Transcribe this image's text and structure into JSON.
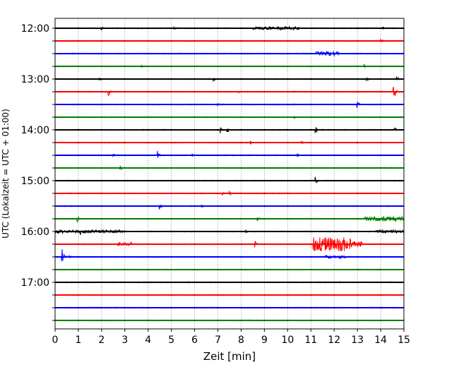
{
  "chart_data": {
    "type": "line",
    "subtype": "helicorder",
    "xlabel": "Zeit  [min]",
    "ylabel": "UTC (Lokalzeit = UTC + 01:00)",
    "xlim": [
      0,
      15
    ],
    "x_ticks": [
      "0",
      "1",
      "2",
      "3",
      "4",
      "5",
      "6",
      "7",
      "8",
      "9",
      "10",
      "11",
      "12",
      "13",
      "14",
      "15"
    ],
    "y_tick_labels": [
      "12:00",
      "13:00",
      "14:00",
      "15:00",
      "16:00",
      "17:00"
    ],
    "grid": "vertical dotted",
    "colors": [
      "#000000",
      "#ff0000",
      "#0000ff",
      "#008000"
    ],
    "rows": [
      {
        "time": "12:00",
        "color": "#000000",
        "events": [
          {
            "t": 2.0,
            "a": 0.3
          },
          {
            "t": 5.1,
            "a": 0.45
          },
          {
            "t": 14.1,
            "a": 0.25
          }
        ],
        "bursts": [
          {
            "t0": 8.5,
            "t1": 10.5,
            "a": 0.25
          }
        ]
      },
      {
        "time": "12:15",
        "color": "#ff0000",
        "events": [
          {
            "t": 14.0,
            "a": 0.5
          }
        ],
        "bursts": []
      },
      {
        "time": "12:30",
        "color": "#0000ff",
        "events": [
          {
            "t": 0.7,
            "a": 0.3
          }
        ],
        "bursts": [
          {
            "t0": 11.2,
            "t1": 12.2,
            "a": 0.35
          }
        ]
      },
      {
        "time": "12:45",
        "color": "#008000",
        "events": [
          {
            "t": 3.7,
            "a": 0.3
          },
          {
            "t": 13.3,
            "a": 0.3
          }
        ],
        "bursts": []
      },
      {
        "time": "13:00",
        "color": "#000000",
        "events": [
          {
            "t": 1.9,
            "a": 0.4
          },
          {
            "t": 6.8,
            "a": 0.45
          },
          {
            "t": 13.4,
            "a": 0.45
          },
          {
            "t": 14.7,
            "a": 0.6
          }
        ],
        "bursts": []
      },
      {
        "time": "13:15",
        "color": "#ff0000",
        "events": [
          {
            "t": 2.3,
            "a": 0.8
          },
          {
            "t": 7.9,
            "a": 0.3
          },
          {
            "t": 14.55,
            "a": 1.7
          }
        ],
        "bursts": []
      },
      {
        "time": "13:30",
        "color": "#0000ff",
        "events": [
          {
            "t": 7.0,
            "a": 0.25
          },
          {
            "t": 13.0,
            "a": 0.6
          }
        ],
        "bursts": []
      },
      {
        "time": "13:45",
        "color": "#008000",
        "events": [
          {
            "t": 10.3,
            "a": 0.3
          }
        ],
        "bursts": []
      },
      {
        "time": "14:00",
        "color": "#000000",
        "events": [
          {
            "t": 7.1,
            "a": 0.6
          },
          {
            "t": 7.4,
            "a": 0.45
          },
          {
            "t": 11.2,
            "a": 0.6
          },
          {
            "t": 14.6,
            "a": 0.55
          }
        ],
        "bursts": []
      },
      {
        "time": "14:15",
        "color": "#ff0000",
        "events": [
          {
            "t": 8.4,
            "a": 0.35
          },
          {
            "t": 10.6,
            "a": 0.3
          }
        ],
        "bursts": []
      },
      {
        "time": "14:30",
        "color": "#0000ff",
        "events": [
          {
            "t": 2.5,
            "a": 0.3
          },
          {
            "t": 4.4,
            "a": 0.95
          },
          {
            "t": 5.9,
            "a": 0.3
          },
          {
            "t": 10.4,
            "a": 0.5
          }
        ],
        "bursts": []
      },
      {
        "time": "14:45",
        "color": "#008000",
        "events": [
          {
            "t": 2.8,
            "a": 0.5
          }
        ],
        "bursts": []
      },
      {
        "time": "15:00",
        "color": "#000000",
        "events": [
          {
            "t": 11.2,
            "a": 0.7
          }
        ],
        "bursts": []
      },
      {
        "time": "15:15",
        "color": "#ff0000",
        "events": [
          {
            "t": 7.2,
            "a": 0.4
          },
          {
            "t": 7.5,
            "a": 0.35
          }
        ],
        "bursts": []
      },
      {
        "time": "15:30",
        "color": "#0000ff",
        "events": [
          {
            "t": 4.5,
            "a": 0.6
          },
          {
            "t": 6.3,
            "a": 0.25
          }
        ],
        "bursts": []
      },
      {
        "time": "15:45",
        "color": "#008000",
        "events": [
          {
            "t": 0.95,
            "a": 0.75
          },
          {
            "t": 8.7,
            "a": 0.45
          }
        ],
        "bursts": [
          {
            "t0": 13.3,
            "t1": 15.0,
            "a": 0.35
          }
        ]
      },
      {
        "time": "16:00",
        "color": "#000000",
        "events": [
          {
            "t": 0.3,
            "a": 0.4
          },
          {
            "t": 1.1,
            "a": 0.6
          },
          {
            "t": 2.4,
            "a": 0.35
          },
          {
            "t": 8.2,
            "a": 0.4
          }
        ],
        "bursts": [
          {
            "t0": 0.0,
            "t1": 3.0,
            "a": 0.25
          },
          {
            "t0": 13.8,
            "t1": 15.0,
            "a": 0.25
          }
        ]
      },
      {
        "time": "16:15",
        "color": "#ff0000",
        "events": [
          {
            "t": 8.6,
            "a": 0.55
          }
        ],
        "bursts": [
          {
            "t0": 2.7,
            "t1": 3.3,
            "a": 0.3
          },
          {
            "t0": 11.1,
            "t1": 12.7,
            "a": 1.1
          },
          {
            "t0": 12.7,
            "t1": 13.2,
            "a": 0.45
          }
        ]
      },
      {
        "time": "16:30",
        "color": "#0000ff",
        "events": [
          {
            "t": 0.3,
            "a": 1.5
          },
          {
            "t": 0.6,
            "a": 0.5
          }
        ],
        "bursts": [
          {
            "t0": 11.6,
            "t1": 12.5,
            "a": 0.2
          }
        ]
      },
      {
        "time": "16:45",
        "color": "#008000",
        "events": [],
        "bursts": []
      },
      {
        "time": "17:00",
        "color": "#000000",
        "events": [],
        "bursts": []
      },
      {
        "time": "17:15",
        "color": "#ff0000",
        "events": [],
        "bursts": []
      },
      {
        "time": "17:30",
        "color": "#0000ff",
        "events": [],
        "bursts": []
      },
      {
        "time": "17:45",
        "color": "#008000",
        "events": [],
        "bursts": []
      }
    ]
  }
}
